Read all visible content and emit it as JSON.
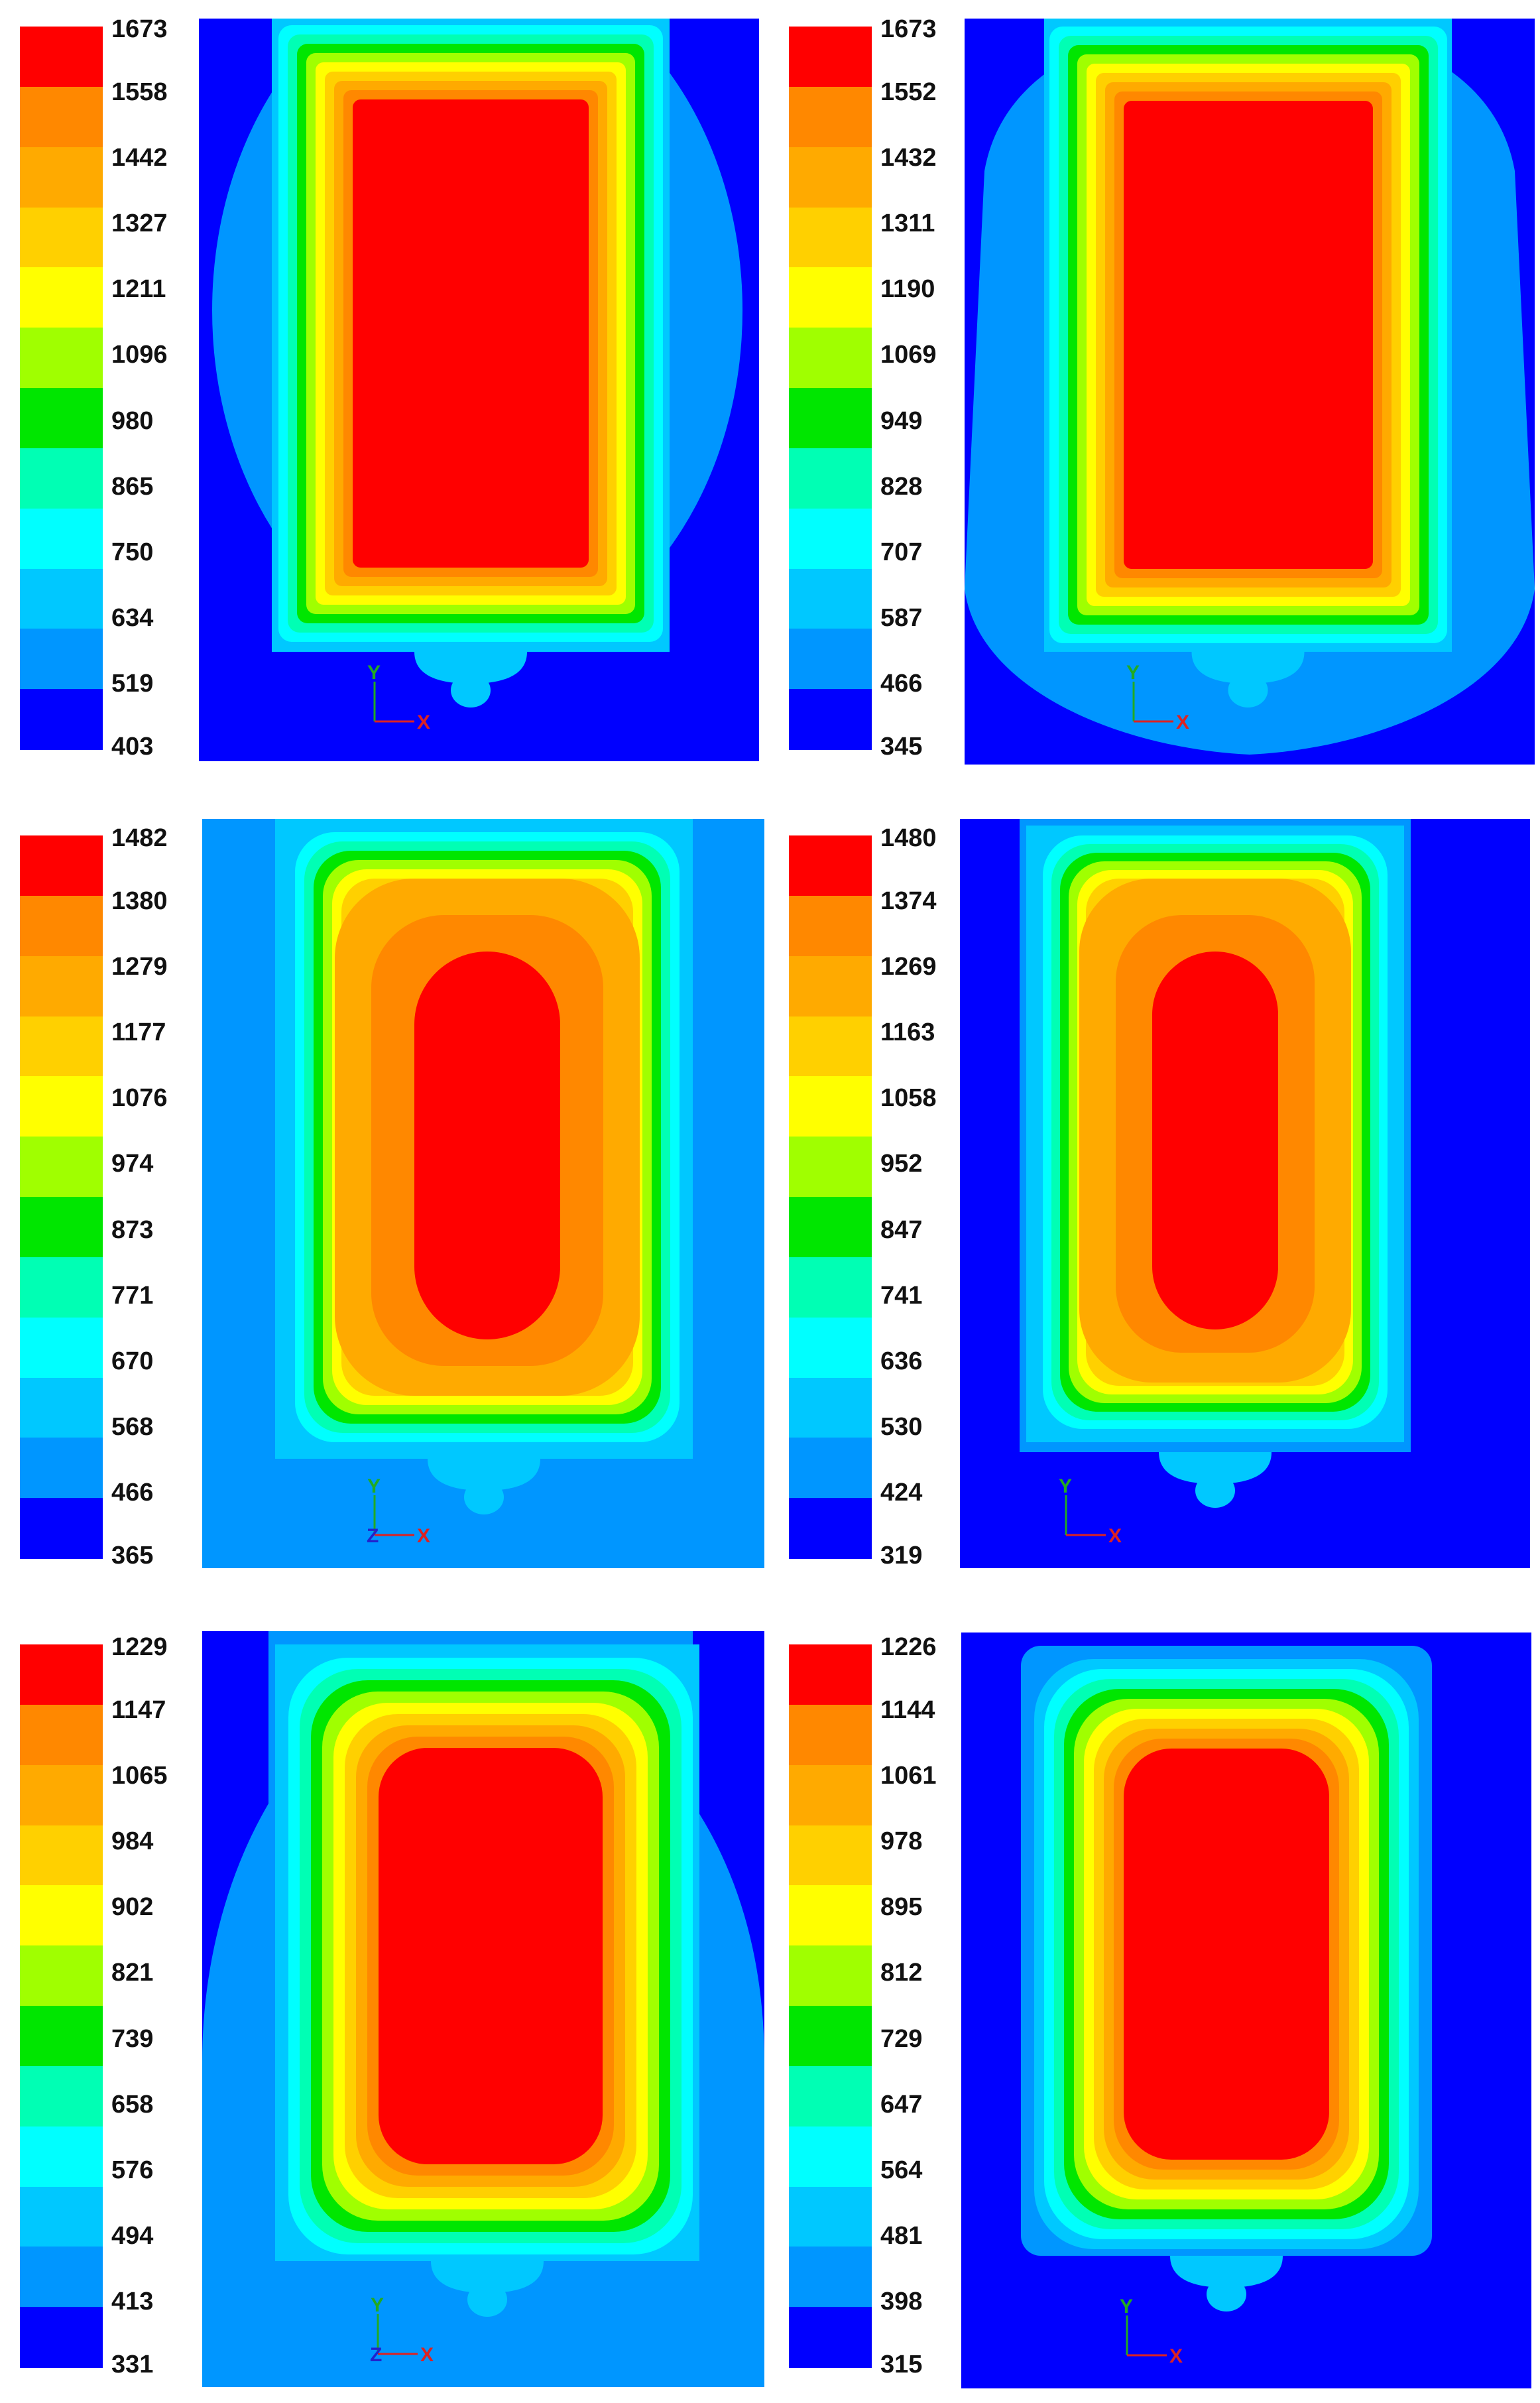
{
  "palette": [
    "#0000ff",
    "#0096ff",
    "#00c8ff",
    "#00ffff",
    "#00ffb4",
    "#00e600",
    "#a0ff00",
    "#ffff00",
    "#ffd000",
    "#ffaa00",
    "#ff8800",
    "#ff0000"
  ],
  "axis_labels": {
    "y": "Y",
    "x": "X",
    "z": "Z"
  },
  "panels": [
    {
      "id": "top-left",
      "legend": [
        "1673",
        "1558",
        "1442",
        "1327",
        "1211",
        "1096",
        "980",
        "865",
        "750",
        "634",
        "519",
        "403"
      ],
      "triad": "xy"
    },
    {
      "id": "top-right",
      "legend": [
        "1673",
        "1552",
        "1432",
        "1311",
        "1190",
        "1069",
        "949",
        "828",
        "707",
        "587",
        "466",
        "345"
      ],
      "triad": "xy"
    },
    {
      "id": "middle-left",
      "legend": [
        "1482",
        "1380",
        "1279",
        "1177",
        "1076",
        "974",
        "873",
        "771",
        "670",
        "568",
        "466",
        "365"
      ],
      "triad": "xyz"
    },
    {
      "id": "middle-right",
      "legend": [
        "1480",
        "1374",
        "1269",
        "1163",
        "1058",
        "952",
        "847",
        "741",
        "636",
        "530",
        "424",
        "319"
      ],
      "triad": "xy"
    },
    {
      "id": "bottom-left",
      "legend": [
        "1229",
        "1147",
        "1065",
        "984",
        "902",
        "821",
        "739",
        "658",
        "576",
        "494",
        "413",
        "331"
      ],
      "triad": "xyz"
    },
    {
      "id": "bottom-right",
      "legend": [
        "1226",
        "1144",
        "1061",
        "978",
        "895",
        "812",
        "729",
        "647",
        "564",
        "481",
        "398",
        "315"
      ],
      "triad": "xy"
    }
  ]
}
